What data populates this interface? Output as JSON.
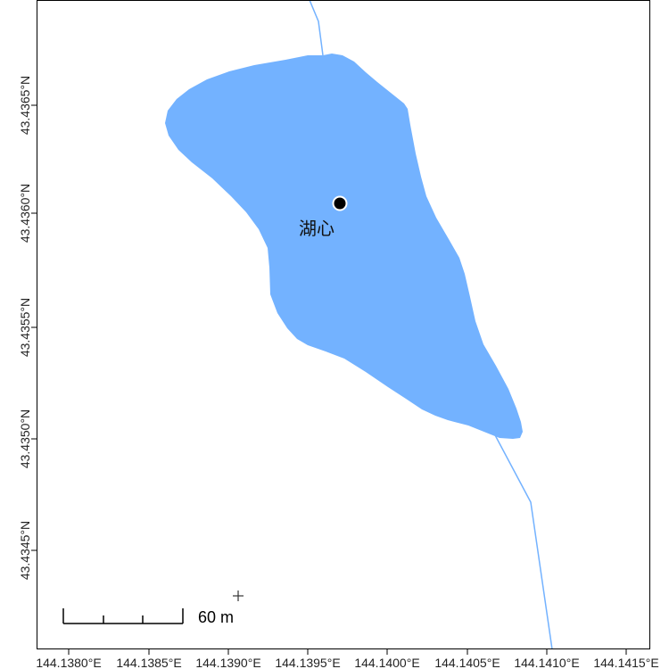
{
  "map": {
    "x_ticks": [
      "144.1380°E",
      "144.1385°E",
      "144.1390°E",
      "144.1395°E",
      "144.1400°E",
      "144.1405°E",
      "144.1410°E",
      "144.1415°E"
    ],
    "y_ticks": [
      "43.4345°N",
      "43.4350°N",
      "43.4355°N",
      "43.4360°N",
      "43.4365°N"
    ],
    "lake_label": "湖心",
    "scale_bar_label": "60 m",
    "colors": {
      "water": "#73b2ff",
      "stream": "#73b2ff",
      "frame": "#000000",
      "point": "#000000"
    }
  }
}
